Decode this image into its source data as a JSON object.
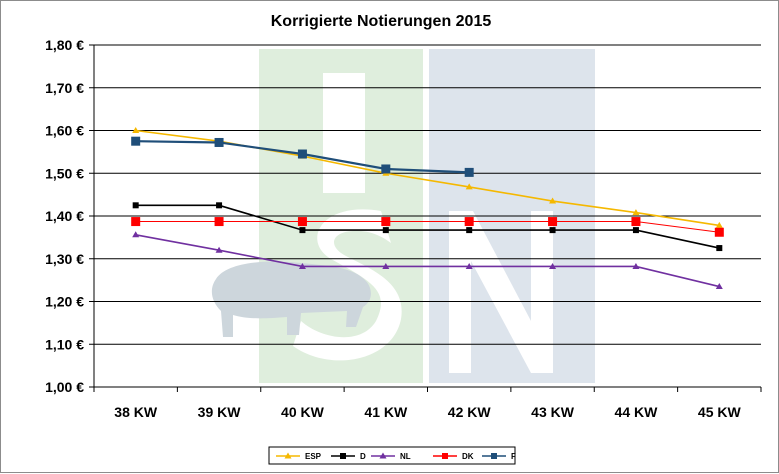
{
  "chart_data": {
    "type": "line",
    "title": "Korrigierte Notierungen 2015",
    "xlabel": "",
    "ylabel": "",
    "categories": [
      "38 KW",
      "39 KW",
      "40 KW",
      "41 KW",
      "42 KW",
      "43 KW",
      "44 KW",
      "45 KW"
    ],
    "ylim": [
      1.0,
      1.8
    ],
    "y_ticks": [
      1.0,
      1.1,
      1.2,
      1.3,
      1.4,
      1.5,
      1.6,
      1.7,
      1.8
    ],
    "y_tick_labels": [
      "1,00 €",
      "1,10 €",
      "1,20 €",
      "1,30 €",
      "1,40 €",
      "1,50 €",
      "1,60 €",
      "1,70 €",
      "1,80 €"
    ],
    "grid": true,
    "legend_position": "bottom",
    "series": [
      {
        "name": "ESP",
        "color": "#f5b800",
        "marker": "triangle",
        "values": [
          1.6,
          1.575,
          1.54,
          1.5,
          1.468,
          1.435,
          1.408,
          1.378
        ]
      },
      {
        "name": "D",
        "color": "#000000",
        "marker": "square-small",
        "values": [
          1.425,
          1.425,
          1.367,
          1.367,
          1.367,
          1.367,
          1.367,
          1.325
        ]
      },
      {
        "name": "NL",
        "color": "#7030a0",
        "marker": "triangle",
        "values": [
          1.356,
          1.32,
          1.282,
          1.282,
          1.282,
          1.282,
          1.282,
          1.235
        ]
      },
      {
        "name": "DK",
        "color": "#ff0000",
        "marker": "square",
        "values": [
          1.387,
          1.387,
          1.387,
          1.387,
          1.387,
          1.387,
          1.387,
          1.362
        ]
      },
      {
        "name": "F",
        "color": "#1f4e79",
        "marker": "square",
        "values": [
          1.575,
          1.572,
          1.545,
          1.51,
          1.502,
          null,
          null,
          null
        ]
      }
    ]
  }
}
